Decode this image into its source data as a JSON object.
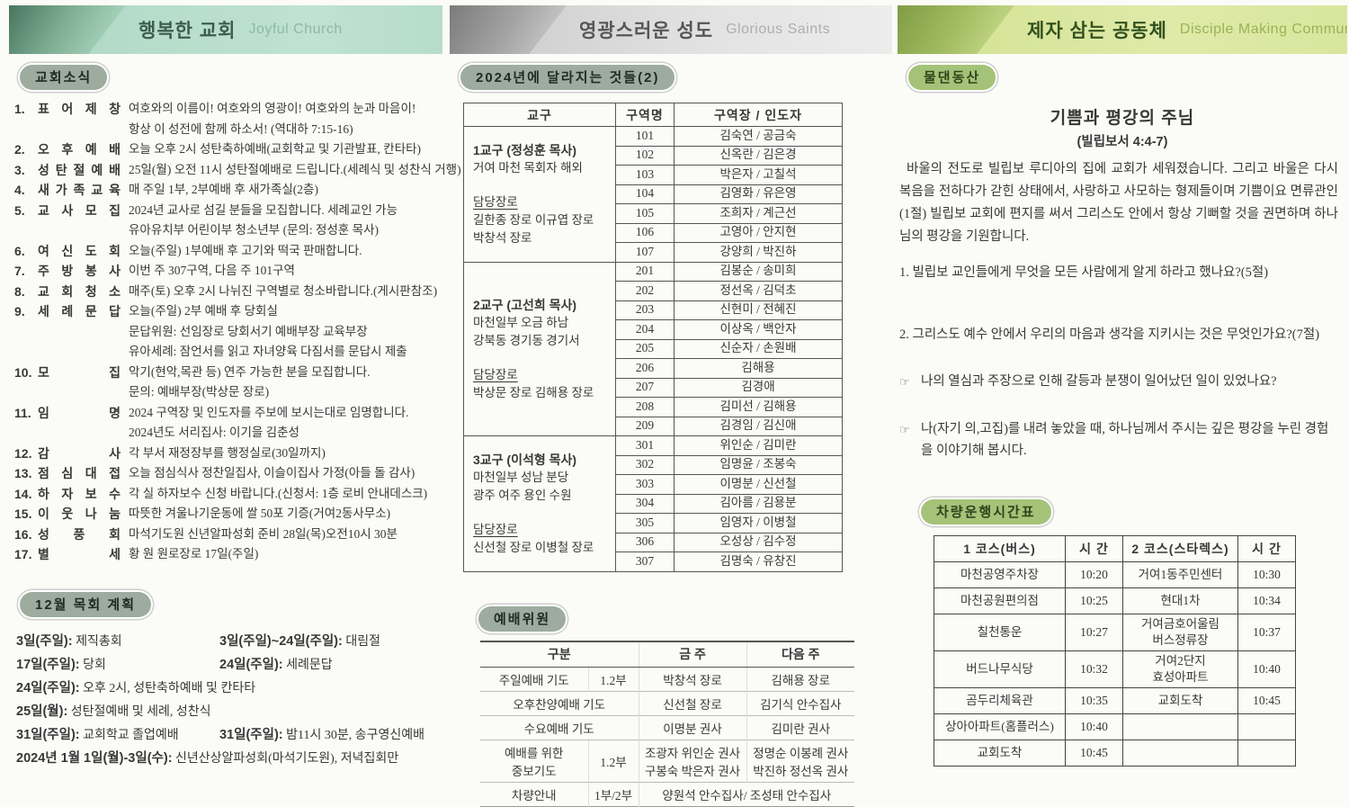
{
  "banners": {
    "left": {
      "title": "행복한 교회",
      "subtitle": "Joyful Church"
    },
    "mid": {
      "title": "영광스러운 성도",
      "subtitle": "Glorious Saints"
    },
    "right": {
      "title": "제자 삼는 공동체",
      "subtitle": "Disciple Making Community"
    }
  },
  "church_news": {
    "badge": "교회소식",
    "items": [
      {
        "num": "1.",
        "label": "표어제창",
        "lines": [
          "여호와의 이름이! 여호와의 영광이! 여호와의 눈과 마음이!",
          "항상 이 성전에 함께 하소서! (역대하 7:15-16)"
        ]
      },
      {
        "num": "2.",
        "label": "오후예배",
        "lines": [
          "오늘 오후 2시 성탄축하예배(교회학교 및 기관발표, 칸타타)"
        ]
      },
      {
        "num": "3.",
        "label": "성탄절예배",
        "lines": [
          "25일(월) 오전 11시 성탄절예배로 드립니다.(세례식 및 성찬식 거행)"
        ]
      },
      {
        "num": "4.",
        "label": "새가족교육",
        "lines": [
          "매 주일 1부, 2부예배 후 새가족실(2층)"
        ]
      },
      {
        "num": "5.",
        "label": "교사모집",
        "lines": [
          "2024년 교사로 섬길 분들을 모집합니다. 세례교인 가능",
          "유아유치부 어린이부 청소년부 (문의: 정성훈 목사)"
        ]
      },
      {
        "num": "6.",
        "label": "여신도회",
        "lines": [
          "오늘(주일) 1부예배 후 고기와 떡국 판매합니다."
        ]
      },
      {
        "num": "7.",
        "label": "주방봉사",
        "lines": [
          "이번 주 307구역, 다음 주 101구역"
        ]
      },
      {
        "num": "8.",
        "label": "교회청소",
        "lines": [
          "매주(토) 오후 2시 나뉘진 구역별로 청소바랍니다.(게시판참조)"
        ]
      },
      {
        "num": "9.",
        "label": "세례문답",
        "lines": [
          "오늘(주일) 2부 예배 후 당회실",
          "문답위원: 선임장로 당회서기 예배부장 교육부장",
          "유아세례: 잠언서를 읽고 자녀양육 다짐서를 문답시 제출"
        ]
      },
      {
        "num": "10.",
        "label": "모집",
        "lines": [
          "악기(현악,목관 등) 연주 가능한 분을 모집합니다.",
          "문의: 예배부장(박상문 장로)"
        ]
      },
      {
        "num": "11.",
        "label": "임명",
        "lines": [
          "2024 구역장 및 인도자를 주보에 보시는대로 임명합니다.",
          "2024년도 서리집사: 이기을 김춘성"
        ]
      },
      {
        "num": "12.",
        "label": "감사",
        "lines": [
          "각 부서 재정장부를 행정실로(30일까지)"
        ]
      },
      {
        "num": "13.",
        "label": "점심대접",
        "lines": [
          "오늘 점심식사 정찬일집사, 이슬이집사 가정(아들 돌 감사)"
        ]
      },
      {
        "num": "14.",
        "label": "하자보수",
        "lines": [
          "각 실 하자보수 신청 바랍니다.(신청서: 1층 로비 안내데스크)"
        ]
      },
      {
        "num": "15.",
        "label": "이웃나눔",
        "lines": [
          "따뜻한 겨울나기운동에 쌀 50포 기증(거여2동사무소)"
        ]
      },
      {
        "num": "16.",
        "label": "성풍회",
        "lines": [
          "마석기도원 신년알파성회 준비 28일(목)오전10시 30분"
        ]
      },
      {
        "num": "17.",
        "label": "별세",
        "lines": [
          "황 원 원로장로 17일(주일)"
        ]
      }
    ]
  },
  "december_plan": {
    "badge": "12월 목회 계획",
    "lines": [
      [
        {
          "b": "3일(주일):",
          "t": "제직총회"
        },
        {
          "b": "3일(주일)~24일(주일):",
          "t": "대림절"
        }
      ],
      [
        {
          "b": "17일(주일):",
          "t": "당회"
        },
        {
          "b": "24일(주일):",
          "t": "세례문답"
        }
      ],
      [
        {
          "b": "24일(주일):",
          "t": "오후 2시, 성탄축하예배 및 칸타타"
        }
      ],
      [
        {
          "b": "25일(월):",
          "t": "성탄절예배 및 세례, 성찬식"
        }
      ],
      [
        {
          "b": "31일(주일):",
          "t": "교회학교 졸업예배"
        },
        {
          "b": "31일(주일):",
          "t": "밤11시 30분, 송구영신예배"
        }
      ],
      [
        {
          "b": "2024년 1월 1일(월)-3일(수):",
          "t": "신년산상알파성회(마석기도원), 저녁집회만"
        }
      ]
    ]
  },
  "changes_2024": {
    "badge": "2024년에 달라지는 것들(2)",
    "table": {
      "headers": [
        "교구",
        "구역명",
        "구역장 / 인도자"
      ],
      "groups": [
        {
          "title": "1교구 (정성훈 목사)",
          "areas": [
            "거여 마천 목회자 해외"
          ],
          "elders_label": "담당장로",
          "elders": [
            "길한종 장로 이규엽 장로",
            "박창석 장로"
          ],
          "rows": [
            [
              "101",
              "김숙연 / 공금숙"
            ],
            [
              "102",
              "신옥란 / 김은경"
            ],
            [
              "103",
              "박은자 / 고칠석"
            ],
            [
              "104",
              "김영화 / 유은영"
            ],
            [
              "105",
              "조희자 / 계근선"
            ],
            [
              "106",
              "고영아 / 안지현"
            ],
            [
              "107",
              "강양희 / 박진하"
            ]
          ]
        },
        {
          "title": "2교구 (고선희 목사)",
          "areas": [
            "마천일부 오금 하남",
            "강북동 경기동 경기서"
          ],
          "elders_label": "담당장로",
          "elders": [
            "박상문 장로 김해용 장로"
          ],
          "rows": [
            [
              "201",
              "김봉순 / 송미희"
            ],
            [
              "202",
              "정선옥 / 김덕초"
            ],
            [
              "203",
              "신현미 / 전혜진"
            ],
            [
              "204",
              "이상옥 / 백안자"
            ],
            [
              "205",
              "신순자 / 손원배"
            ],
            [
              "206",
              "김해용"
            ],
            [
              "207",
              "김경애"
            ],
            [
              "208",
              "김미선 / 김해용"
            ],
            [
              "209",
              "김경임 / 김신애"
            ]
          ]
        },
        {
          "title": "3교구 (이석형 목사)",
          "areas": [
            "마천일부 성남 분당",
            "광주 여주 용인 수원"
          ],
          "elders_label": "담당장로",
          "elders": [
            "신선철 장로 이병철 장로"
          ],
          "rows": [
            [
              "301",
              "위인순 / 김미란"
            ],
            [
              "302",
              "임명윤 / 조봉숙"
            ],
            [
              "303",
              "이명분 / 신선철"
            ],
            [
              "304",
              "김아름 / 김용분"
            ],
            [
              "305",
              "임영자 / 이병철"
            ],
            [
              "306",
              "오성상 / 김수정"
            ],
            [
              "307",
              "김명숙 / 유창진"
            ]
          ]
        }
      ]
    }
  },
  "worship_committee": {
    "badge": "예배위원",
    "table": {
      "headers": [
        "구분",
        "금 주",
        "다음 주"
      ],
      "rows": [
        {
          "name": [
            "주일예배 기도"
          ],
          "part": "1.2부",
          "cells": [
            [
              "박창석 장로"
            ],
            [
              "김해용 장로"
            ]
          ]
        },
        {
          "name": [
            "오후찬양예배 기도"
          ],
          "part": null,
          "cells": [
            [
              "신선철 장로"
            ],
            [
              "김기식 안수집사"
            ]
          ]
        },
        {
          "name": [
            "수요예배 기도"
          ],
          "part": null,
          "cells": [
            [
              "이명분 권사"
            ],
            [
              "김미란 권사"
            ]
          ]
        },
        {
          "name": [
            "예배를 위한",
            "중보기도"
          ],
          "part": "1.2부",
          "cells": [
            [
              "조광자 위인순 권사",
              "구봉숙 박은자 권사"
            ],
            [
              "정명순 이봉례 권사",
              "박진하 정선옥 권사"
            ]
          ]
        },
        {
          "name": [
            "차량안내"
          ],
          "part": "1부/2부",
          "cells": [
            [
              "양원석 안수집사/ 조성태 안수집사"
            ]
          ],
          "merge": true
        }
      ]
    }
  },
  "garden": {
    "badge": "물댄동산",
    "title": "기쁨과 평강의 주님",
    "reference": "(빌립보서 4:4-7)",
    "paragraph": "바울의 전도로 빌립보 루디아의 집에 교회가 세워졌습니다. 그리고 바울은 다시 복음을 전하다가 갇힌 상태에서, 사랑하고 사모하는 형제들이며 기쁨이요 면류관인(1절) 빌립보 교회에 편지를 써서 그리스도 안에서 항상 기뻐할 것을 권면하며 하나님의 평강을 기원합니다.",
    "questions": [
      "1. 빌립보 교인들에게 무엇을 모든 사람에게 알게 하라고 했나요?(5절)",
      "2. 그리스도 예수 안에서 우리의 마음과 생각을 지키시는 것은 무엇인가요?(7절)"
    ],
    "prompts": [
      {
        "icon": "☞",
        "text": "나의 열심과 주장으로 인해 갈등과 분쟁이 일어났던 일이 있었나요?"
      },
      {
        "icon": "☞",
        "text": "나(자기 의,고집)를 내려 놓았을 때, 하나님께서 주시는 깊은 평강을 누린 경험을 이야기해 봅시다."
      }
    ]
  },
  "vehicle_schedule": {
    "badge": "차량운행시간표",
    "headers": [
      "1 코스(버스)",
      "시 간",
      "2 코스(스타렉스)",
      "시 간"
    ],
    "rows": [
      [
        [
          "마천공영주차장"
        ],
        "10:20",
        [
          "거여1동주민센터"
        ],
        "10:30"
      ],
      [
        [
          "마천공원편의점"
        ],
        "10:25",
        [
          "현대1차"
        ],
        "10:34"
      ],
      [
        [
          "칠천통운"
        ],
        "10:27",
        [
          "거여금호어울림",
          "버스정류장"
        ],
        "10:37"
      ],
      [
        [
          "버드나무식당"
        ],
        "10:32",
        [
          "거여2단지",
          "효성아파트"
        ],
        "10:40"
      ],
      [
        [
          "곰두리체육관"
        ],
        "10:35",
        [
          "교회도착"
        ],
        "10:45"
      ],
      [
        [
          "상아아파트(홈플러스)"
        ],
        "10:40",
        [
          ""
        ],
        ""
      ],
      [
        [
          "교회도착"
        ],
        "10:45",
        [
          ""
        ],
        ""
      ]
    ]
  }
}
